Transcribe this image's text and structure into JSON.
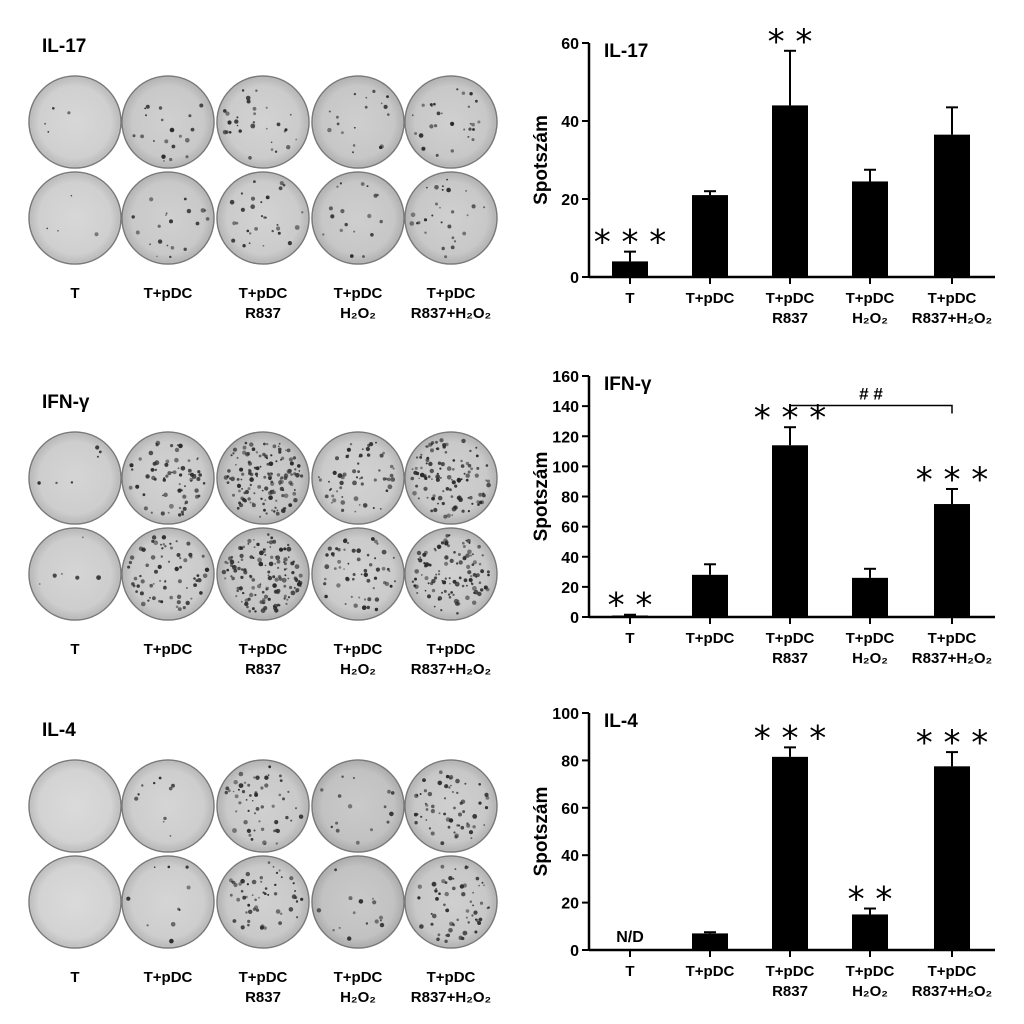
{
  "plate_panels": [
    {
      "title": "IL-17",
      "labels": [
        [
          "T"
        ],
        [
          "T+pDC"
        ],
        [
          "T+pDC",
          "R837"
        ],
        [
          "T+pDC",
          "H₂O₂"
        ],
        [
          "T+pDC",
          "R837+H₂O₂"
        ]
      ]
    },
    {
      "title": "IFN-γ",
      "labels": [
        [
          "T"
        ],
        [
          "T+pDC"
        ],
        [
          "T+pDC",
          "R837"
        ],
        [
          "T+pDC",
          "H₂O₂"
        ],
        [
          "T+pDC",
          "R837+H₂O₂"
        ]
      ]
    },
    {
      "title": "IL-4",
      "labels": [
        [
          "T"
        ],
        [
          "T+pDC"
        ],
        [
          "T+pDC",
          "R837"
        ],
        [
          "T+pDC",
          "H₂O₂"
        ],
        [
          "T+pDC",
          "R837+H₂O₂"
        ]
      ]
    }
  ],
  "chart_data": [
    {
      "type": "bar",
      "title": "IL-17",
      "ylabel": "Spotszám",
      "ylim": [
        0,
        60
      ],
      "yticks": [
        0,
        20,
        40,
        60
      ],
      "categories": [
        [
          "T"
        ],
        [
          "T+pDC"
        ],
        [
          "T+pDC",
          "R837"
        ],
        [
          "T+pDC",
          "H₂O₂"
        ],
        [
          "T+pDC",
          "R837+H₂O₂"
        ]
      ],
      "values": [
        4,
        21,
        44,
        24.5,
        36.5
      ],
      "errors": [
        2.5,
        1,
        14,
        3,
        7
      ],
      "significance": [
        "* * *",
        "",
        "* *",
        "",
        ""
      ],
      "labels_in_plot": [
        "",
        "",
        "",
        "",
        ""
      ],
      "bracket": null
    },
    {
      "type": "bar",
      "title": "IFN-γ",
      "ylabel": "Spotszám",
      "ylim": [
        0,
        160
      ],
      "yticks": [
        0,
        20,
        40,
        60,
        80,
        100,
        120,
        140,
        160
      ],
      "categories": [
        [
          "T"
        ],
        [
          "T+pDC"
        ],
        [
          "T+pDC",
          "R837"
        ],
        [
          "T+pDC",
          "H₂O₂"
        ],
        [
          "T+pDC",
          "R837+H₂O₂"
        ]
      ],
      "values": [
        1,
        28,
        114,
        26,
        75
      ],
      "errors": [
        0.5,
        7,
        12,
        6,
        10
      ],
      "significance": [
        "* *",
        "",
        "* * *",
        "",
        "* * *"
      ],
      "labels_in_plot": [
        "",
        "",
        "",
        "",
        ""
      ],
      "bracket": {
        "from": 2,
        "to": 4,
        "label": "# #",
        "y": 155
      }
    },
    {
      "type": "bar",
      "title": "IL-4",
      "ylabel": "Spotszám",
      "ylim": [
        0,
        100
      ],
      "yticks": [
        0,
        20,
        40,
        60,
        80,
        100
      ],
      "categories": [
        [
          "T"
        ],
        [
          "T+pDC"
        ],
        [
          "T+pDC",
          "R837"
        ],
        [
          "T+pDC",
          "H₂O₂"
        ],
        [
          "T+pDC",
          "R837+H₂O₂"
        ]
      ],
      "values": [
        0,
        7,
        81.5,
        15,
        77.5
      ],
      "errors": [
        0,
        0.5,
        4,
        2.5,
        6
      ],
      "significance": [
        "",
        "",
        "* * *",
        "* *",
        "* * *"
      ],
      "labels_in_plot": [
        "N/D",
        "",
        "",
        "",
        ""
      ],
      "bracket": null
    }
  ]
}
